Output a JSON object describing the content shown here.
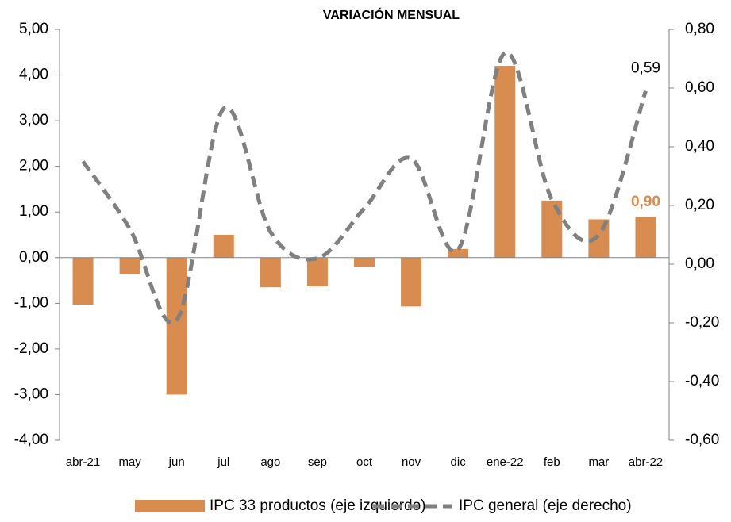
{
  "chart_data": {
    "type": "bar_line",
    "title": "VARIACIÓN MENSUAL",
    "categories": [
      "abr-21",
      "may",
      "jun",
      "jul",
      "ago",
      "sep",
      "oct",
      "nov",
      "dic",
      "ene-22",
      "feb",
      "mar",
      "abr-22"
    ],
    "series": [
      {
        "name": "IPC 33 productos (eje izquierdo)",
        "type": "bar",
        "color": "#d98c4f",
        "axis": "y",
        "values": [
          -1.03,
          -0.36,
          -3.0,
          0.5,
          -0.65,
          -0.63,
          -0.2,
          -1.07,
          0.19,
          4.2,
          1.25,
          0.84,
          0.9
        ],
        "value_labels": [
          null,
          null,
          null,
          null,
          null,
          null,
          null,
          null,
          null,
          null,
          null,
          null,
          "0,90"
        ]
      },
      {
        "name": "IPC general (eje derecho)",
        "type": "line",
        "color": "#808080",
        "axis": "y2",
        "dashed": true,
        "values": [
          0.35,
          0.12,
          -0.19,
          0.53,
          0.11,
          0.02,
          0.19,
          0.36,
          0.05,
          0.72,
          0.22,
          0.1,
          0.59
        ],
        "value_labels": [
          null,
          null,
          null,
          null,
          null,
          null,
          null,
          null,
          null,
          null,
          null,
          null,
          "0,59"
        ]
      }
    ],
    "ylim": [
      -4,
      5
    ],
    "yticks": [
      {
        "value": -4,
        "label": "-4,00"
      },
      {
        "value": -3,
        "label": "-3,00"
      },
      {
        "value": -2,
        "label": "-2,00"
      },
      {
        "value": -1,
        "label": "-1,00"
      },
      {
        "value": 0,
        "label": "0,00"
      },
      {
        "value": 1,
        "label": "1,00"
      },
      {
        "value": 2,
        "label": "2,00"
      },
      {
        "value": 3,
        "label": "3,00"
      },
      {
        "value": 4,
        "label": "4,00"
      },
      {
        "value": 5,
        "label": "5,00"
      }
    ],
    "y2lim": [
      -0.6,
      0.8
    ],
    "y2ticks": [
      {
        "value": -0.6,
        "label": "-0,60"
      },
      {
        "value": -0.4,
        "label": "-0,40"
      },
      {
        "value": -0.2,
        "label": "-0,20"
      },
      {
        "value": 0,
        "label": "0,00"
      },
      {
        "value": 0.2,
        "label": "0,20"
      },
      {
        "value": 0.4,
        "label": "0,40"
      },
      {
        "value": 0.6,
        "label": "0,60"
      },
      {
        "value": 0.8,
        "label": "0,80"
      }
    ],
    "legend": "bottom"
  }
}
